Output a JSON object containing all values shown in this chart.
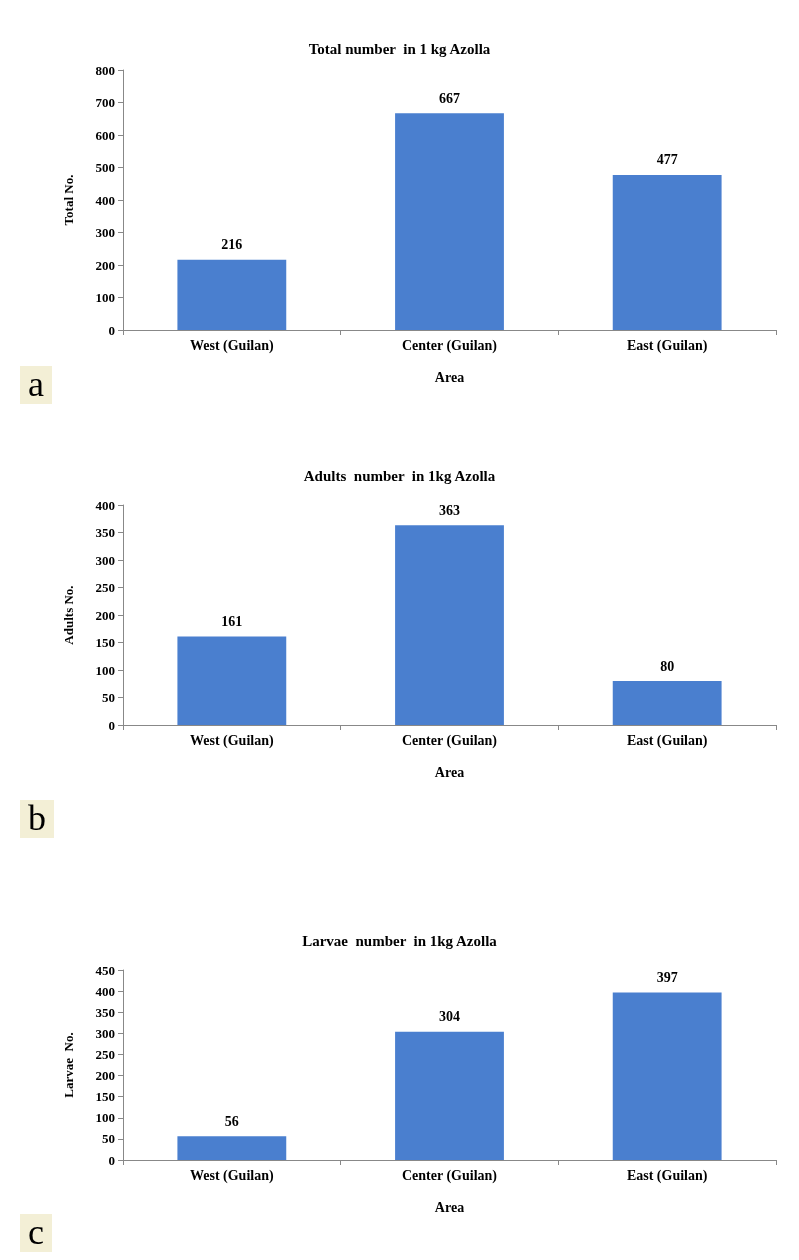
{
  "chart_data": [
    {
      "type": "bar",
      "title": "Total number  in 1 kg Azolla",
      "xlabel": "Area",
      "ylabel": "Total No.",
      "categories": [
        "West (Guilan)",
        "Center (Guilan)",
        "East (Guilan)"
      ],
      "values": [
        216,
        667,
        477
      ],
      "color": "#4a7fcf",
      "ylim": [
        0,
        800
      ],
      "yticks": [
        0,
        100,
        200,
        300,
        400,
        500,
        600,
        700,
        800
      ],
      "data_labels": true,
      "grid": false,
      "annotations": [
        "a"
      ]
    },
    {
      "type": "bar",
      "title": "Adults  number  in 1kg Azolla",
      "xlabel": "Area",
      "ylabel": "Adults No.",
      "categories": [
        "West (Guilan)",
        "Center (Guilan)",
        "East (Guilan)"
      ],
      "values": [
        161,
        363,
        80
      ],
      "color": "#4a7fcf",
      "ylim": [
        0,
        400
      ],
      "yticks": [
        0,
        50,
        100,
        150,
        200,
        250,
        300,
        350,
        400
      ],
      "data_labels": true,
      "grid": false,
      "annotations": [
        "b"
      ]
    },
    {
      "type": "bar",
      "title": "Larvae  number  in 1kg Azolla",
      "xlabel": "Area",
      "ylabel": "Larvae  No.",
      "categories": [
        "West (Guilan)",
        "Center (Guilan)",
        "East (Guilan)"
      ],
      "values": [
        56,
        304,
        397
      ],
      "color": "#4a7fcf",
      "ylim": [
        0,
        450
      ],
      "yticks": [
        0,
        50,
        100,
        150,
        200,
        250,
        300,
        350,
        400,
        450
      ],
      "data_labels": true,
      "grid": false,
      "annotations": [
        "c"
      ]
    }
  ]
}
